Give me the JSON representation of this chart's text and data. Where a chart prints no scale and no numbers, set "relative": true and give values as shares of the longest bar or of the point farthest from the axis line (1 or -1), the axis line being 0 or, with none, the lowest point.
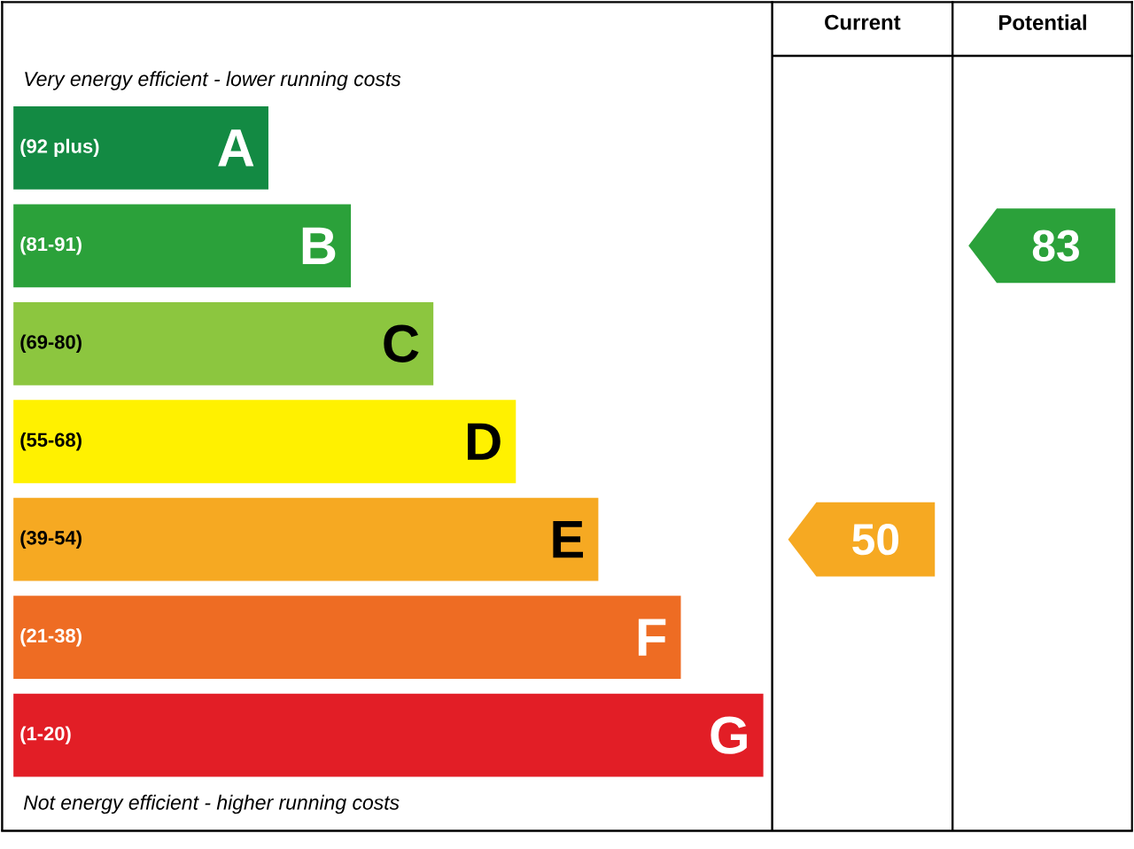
{
  "chart_data": {
    "type": "bar",
    "orientation": "horizontal",
    "relative": true,
    "categories": [
      "A",
      "B",
      "C",
      "D",
      "E",
      "F",
      "G"
    ],
    "values": [
      0.34,
      0.45,
      0.56,
      0.67,
      0.78,
      0.89,
      1
    ],
    "colors": [
      "#138a43",
      "#2ba13a",
      "#8cc63f",
      "#fff100",
      "#f6a922",
      "#ee6c23",
      "#e21e26"
    ],
    "annotations": [
      "Very energy efficient - lower running costs",
      "Not energy efficient - higher running costs",
      "(92 plus)",
      "(81-91)",
      "(69-80)",
      "(55-68)",
      "(39-54)",
      "(21-38)",
      "(1-20)",
      "Current",
      "Potential",
      "50",
      "83"
    ]
  }
}
